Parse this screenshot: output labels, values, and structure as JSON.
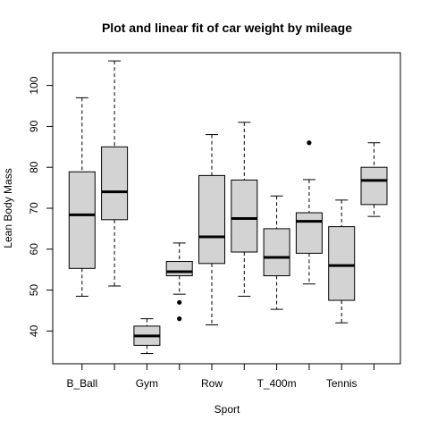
{
  "chart_data": {
    "type": "box",
    "title": "Plot and linear fit of car weight by mileage",
    "xlabel": "Sport",
    "ylabel": "Lean Body Mass",
    "ylim": [
      32,
      108
    ],
    "yticks": [
      40,
      50,
      60,
      70,
      80,
      90,
      100
    ],
    "grid": false,
    "box_fill": "#d3d3d3",
    "tick_labels": [
      {
        "label": "B_Ball",
        "position": 1
      },
      {
        "label": "Gym",
        "position": 3
      },
      {
        "label": "Row",
        "position": 5
      },
      {
        "label": "T_400m",
        "position": 7
      },
      {
        "label": "Tennis",
        "position": 9
      }
    ],
    "groups": [
      {
        "min": 48.5,
        "q1": 55.3,
        "median": 68.4,
        "q3": 78.9,
        "max": 97.0,
        "outliers": []
      },
      {
        "min": 51.0,
        "q1": 67.2,
        "median": 74.0,
        "q3": 85.0,
        "max": 106.0,
        "outliers": []
      },
      {
        "min": 34.5,
        "q1": 36.5,
        "median": 38.8,
        "q3": 41.2,
        "max": 43.0,
        "outliers": []
      },
      {
        "min": 49.0,
        "q1": 53.5,
        "median": 54.5,
        "q3": 57.0,
        "max": 61.5,
        "outliers": [
          47.0,
          43.0
        ]
      },
      {
        "min": 41.5,
        "q1": 56.5,
        "median": 63.0,
        "q3": 78.0,
        "max": 88.0,
        "outliers": []
      },
      {
        "min": 48.5,
        "q1": 59.3,
        "median": 67.5,
        "q3": 76.9,
        "max": 91.0,
        "outliers": []
      },
      {
        "min": 45.3,
        "q1": 53.5,
        "median": 58.0,
        "q3": 65.0,
        "max": 73.0,
        "outliers": []
      },
      {
        "min": 51.5,
        "q1": 59.0,
        "median": 66.8,
        "q3": 68.9,
        "max": 77.0,
        "outliers": [
          86.0
        ]
      },
      {
        "min": 42.0,
        "q1": 47.5,
        "median": 56.0,
        "q3": 65.5,
        "max": 72.0,
        "outliers": []
      },
      {
        "min": 68.0,
        "q1": 70.9,
        "median": 76.8,
        "q3": 80.0,
        "max": 86.0,
        "outliers": []
      }
    ]
  }
}
